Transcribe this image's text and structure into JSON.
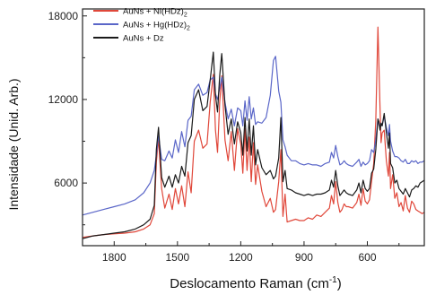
{
  "chart_data": {
    "type": "line",
    "title": "",
    "xlabel": "Deslocamento Raman (cm",
    "xlabel_sup": "-1",
    "xlabel_close": ")",
    "ylabel": "Intensidade (Unid. Arb.)",
    "xlim": [
      1950,
      330
    ],
    "ylim": [
      1500,
      18500
    ],
    "x_reversed": true,
    "xticks": [
      1800,
      1500,
      1200,
      900,
      600
    ],
    "yticks": [
      6000,
      12000,
      18000
    ],
    "grid": false,
    "legend_position": "top-left",
    "series": [
      {
        "name_main": "AuNs + Ni(HDz)",
        "name_sub": "2",
        "color": "#e0473a",
        "x": [
          1950,
          1900,
          1850,
          1800,
          1750,
          1700,
          1660,
          1630,
          1610,
          1600,
          1590,
          1575,
          1560,
          1540,
          1525,
          1510,
          1495,
          1480,
          1465,
          1450,
          1435,
          1420,
          1400,
          1380,
          1360,
          1345,
          1330,
          1320,
          1310,
          1300,
          1290,
          1275,
          1260,
          1245,
          1230,
          1215,
          1200,
          1190,
          1180,
          1170,
          1160,
          1150,
          1140,
          1130,
          1120,
          1100,
          1080,
          1060,
          1045,
          1035,
          1020,
          1010,
          1000,
          990,
          980,
          960,
          940,
          920,
          900,
          880,
          860,
          840,
          820,
          800,
          780,
          770,
          760,
          750,
          740,
          730,
          720,
          710,
          700,
          690,
          670,
          650,
          640,
          630,
          620,
          610,
          600,
          590,
          580,
          570,
          560,
          550,
          545,
          540,
          535,
          530,
          520,
          510,
          500,
          495,
          490,
          480,
          470,
          460,
          450,
          440,
          430,
          420,
          410,
          400,
          390,
          380,
          370,
          360,
          350,
          340,
          330
        ],
        "y": [
          2100,
          2200,
          2300,
          2350,
          2400,
          2500,
          2700,
          3000,
          3800,
          7500,
          9200,
          5600,
          4200,
          5200,
          4100,
          5600,
          4500,
          5800,
          4300,
          6800,
          5300,
          9000,
          9800,
          8500,
          8800,
          11800,
          13800,
          9800,
          8200,
          11800,
          13700,
          9100,
          7600,
          9700,
          6900,
          9900,
          8800,
          6700,
          9900,
          6900,
          9300,
          6100,
          8900,
          5900,
          7300,
          5400,
          4300,
          4900,
          3900,
          4100,
          6100,
          8400,
          3600,
          5200,
          3200,
          3300,
          3400,
          3300,
          3300,
          3500,
          3400,
          3700,
          3600,
          3900,
          4200,
          5100,
          4500,
          6100,
          4600,
          3900,
          4100,
          4500,
          4300,
          4300,
          4200,
          4600,
          5200,
          4400,
          5600,
          4700,
          4500,
          4800,
          6100,
          7400,
          10500,
          17200,
          14500,
          11500,
          8900,
          9600,
          9800,
          7600,
          6500,
          8200,
          5600,
          6600,
          4900,
          5300,
          4300,
          4600,
          4000,
          5100,
          4200,
          3900,
          4700,
          4500,
          4100,
          4000,
          3900,
          3800,
          3900
        ]
      },
      {
        "name_main": "AuNs + Hg(HDz)",
        "name_sub": "2",
        "color": "#5a66c8",
        "x": [
          1950,
          1900,
          1850,
          1800,
          1750,
          1700,
          1660,
          1630,
          1610,
          1600,
          1590,
          1575,
          1560,
          1540,
          1525,
          1510,
          1495,
          1480,
          1465,
          1450,
          1435,
          1420,
          1400,
          1380,
          1360,
          1345,
          1330,
          1320,
          1310,
          1300,
          1290,
          1275,
          1260,
          1245,
          1230,
          1215,
          1200,
          1190,
          1180,
          1170,
          1160,
          1150,
          1140,
          1130,
          1120,
          1100,
          1080,
          1060,
          1045,
          1035,
          1020,
          1010,
          1000,
          990,
          980,
          960,
          940,
          920,
          900,
          880,
          860,
          840,
          820,
          800,
          780,
          770,
          760,
          750,
          740,
          730,
          720,
          710,
          700,
          690,
          670,
          650,
          640,
          630,
          620,
          610,
          600,
          590,
          580,
          570,
          560,
          550,
          545,
          540,
          535,
          530,
          520,
          510,
          500,
          495,
          490,
          480,
          470,
          460,
          450,
          440,
          430,
          420,
          410,
          400,
          390,
          380,
          370,
          360,
          350,
          340,
          330
        ],
        "y": [
          3700,
          3900,
          4100,
          4300,
          4500,
          4800,
          5300,
          6000,
          6900,
          8000,
          9400,
          7700,
          7600,
          8300,
          7800,
          9100,
          8200,
          9700,
          8600,
          10500,
          10800,
          12700,
          13100,
          12300,
          12500,
          13400,
          13600,
          12400,
          12000,
          12800,
          13600,
          11800,
          10600,
          11300,
          10100,
          11400,
          11200,
          10100,
          11900,
          10500,
          12200,
          10600,
          11400,
          10200,
          10400,
          10300,
          10700,
          12300,
          14800,
          15100,
          12600,
          11800,
          9100,
          8600,
          8000,
          7600,
          7600,
          7400,
          7300,
          7400,
          7300,
          7300,
          7200,
          7400,
          7500,
          8200,
          7800,
          8700,
          7900,
          7300,
          7400,
          7600,
          7400,
          7300,
          7200,
          7500,
          7700,
          7200,
          7500,
          7300,
          7400,
          7600,
          8400,
          8200,
          9100,
          10600,
          10200,
          10000,
          10300,
          10100,
          10800,
          10000,
          9400,
          10200,
          9000,
          8300,
          7900,
          7900,
          7800,
          7600,
          7500,
          7700,
          7400,
          7400,
          7600,
          7500,
          7600,
          7400,
          7500,
          7500,
          7600
        ]
      },
      {
        "name_main": "AuNs + Dz",
        "name_sub": "",
        "color": "#1a1a1a",
        "x": [
          1950,
          1900,
          1850,
          1800,
          1750,
          1700,
          1660,
          1630,
          1610,
          1600,
          1590,
          1575,
          1560,
          1540,
          1525,
          1510,
          1495,
          1480,
          1465,
          1450,
          1435,
          1420,
          1400,
          1380,
          1360,
          1345,
          1330,
          1320,
          1310,
          1300,
          1290,
          1275,
          1260,
          1245,
          1230,
          1215,
          1200,
          1190,
          1180,
          1170,
          1160,
          1150,
          1140,
          1130,
          1120,
          1100,
          1080,
          1060,
          1045,
          1035,
          1020,
          1010,
          1000,
          990,
          980,
          960,
          940,
          920,
          900,
          880,
          860,
          840,
          820,
          800,
          780,
          770,
          760,
          750,
          740,
          730,
          720,
          710,
          700,
          690,
          670,
          650,
          640,
          630,
          620,
          610,
          600,
          590,
          580,
          570,
          560,
          550,
          545,
          540,
          535,
          530,
          520,
          510,
          500,
          495,
          490,
          480,
          470,
          460,
          450,
          440,
          430,
          420,
          410,
          400,
          390,
          380,
          370,
          360,
          350,
          340,
          330
        ],
        "y": [
          2000,
          2200,
          2300,
          2400,
          2500,
          2700,
          3000,
          3400,
          4400,
          8400,
          10000,
          6400,
          5700,
          6500,
          5700,
          6600,
          6000,
          7200,
          6500,
          8900,
          9400,
          12000,
          12700,
          11200,
          11500,
          13400,
          15400,
          12300,
          11100,
          13700,
          15300,
          11600,
          9500,
          10600,
          8800,
          10400,
          9600,
          8000,
          10700,
          8300,
          10600,
          8000,
          10100,
          7300,
          8400,
          7100,
          6600,
          6900,
          6300,
          6500,
          7800,
          10700,
          6100,
          6900,
          5600,
          5500,
          5300,
          5200,
          5100,
          5200,
          5100,
          5200,
          5200,
          5300,
          5500,
          6200,
          5700,
          6900,
          5800,
          5100,
          5300,
          5500,
          5300,
          5200,
          5100,
          5500,
          6000,
          5300,
          6200,
          5600,
          5400,
          5600,
          6700,
          7000,
          8400,
          10600,
          10400,
          9800,
          10300,
          10100,
          11000,
          9600,
          8500,
          9600,
          7400,
          7100,
          6000,
          6200,
          5600,
          5400,
          5200,
          5600,
          5300,
          5000,
          5500,
          5600,
          5800,
          5700,
          6000,
          6100,
          6200
        ]
      }
    ]
  }
}
